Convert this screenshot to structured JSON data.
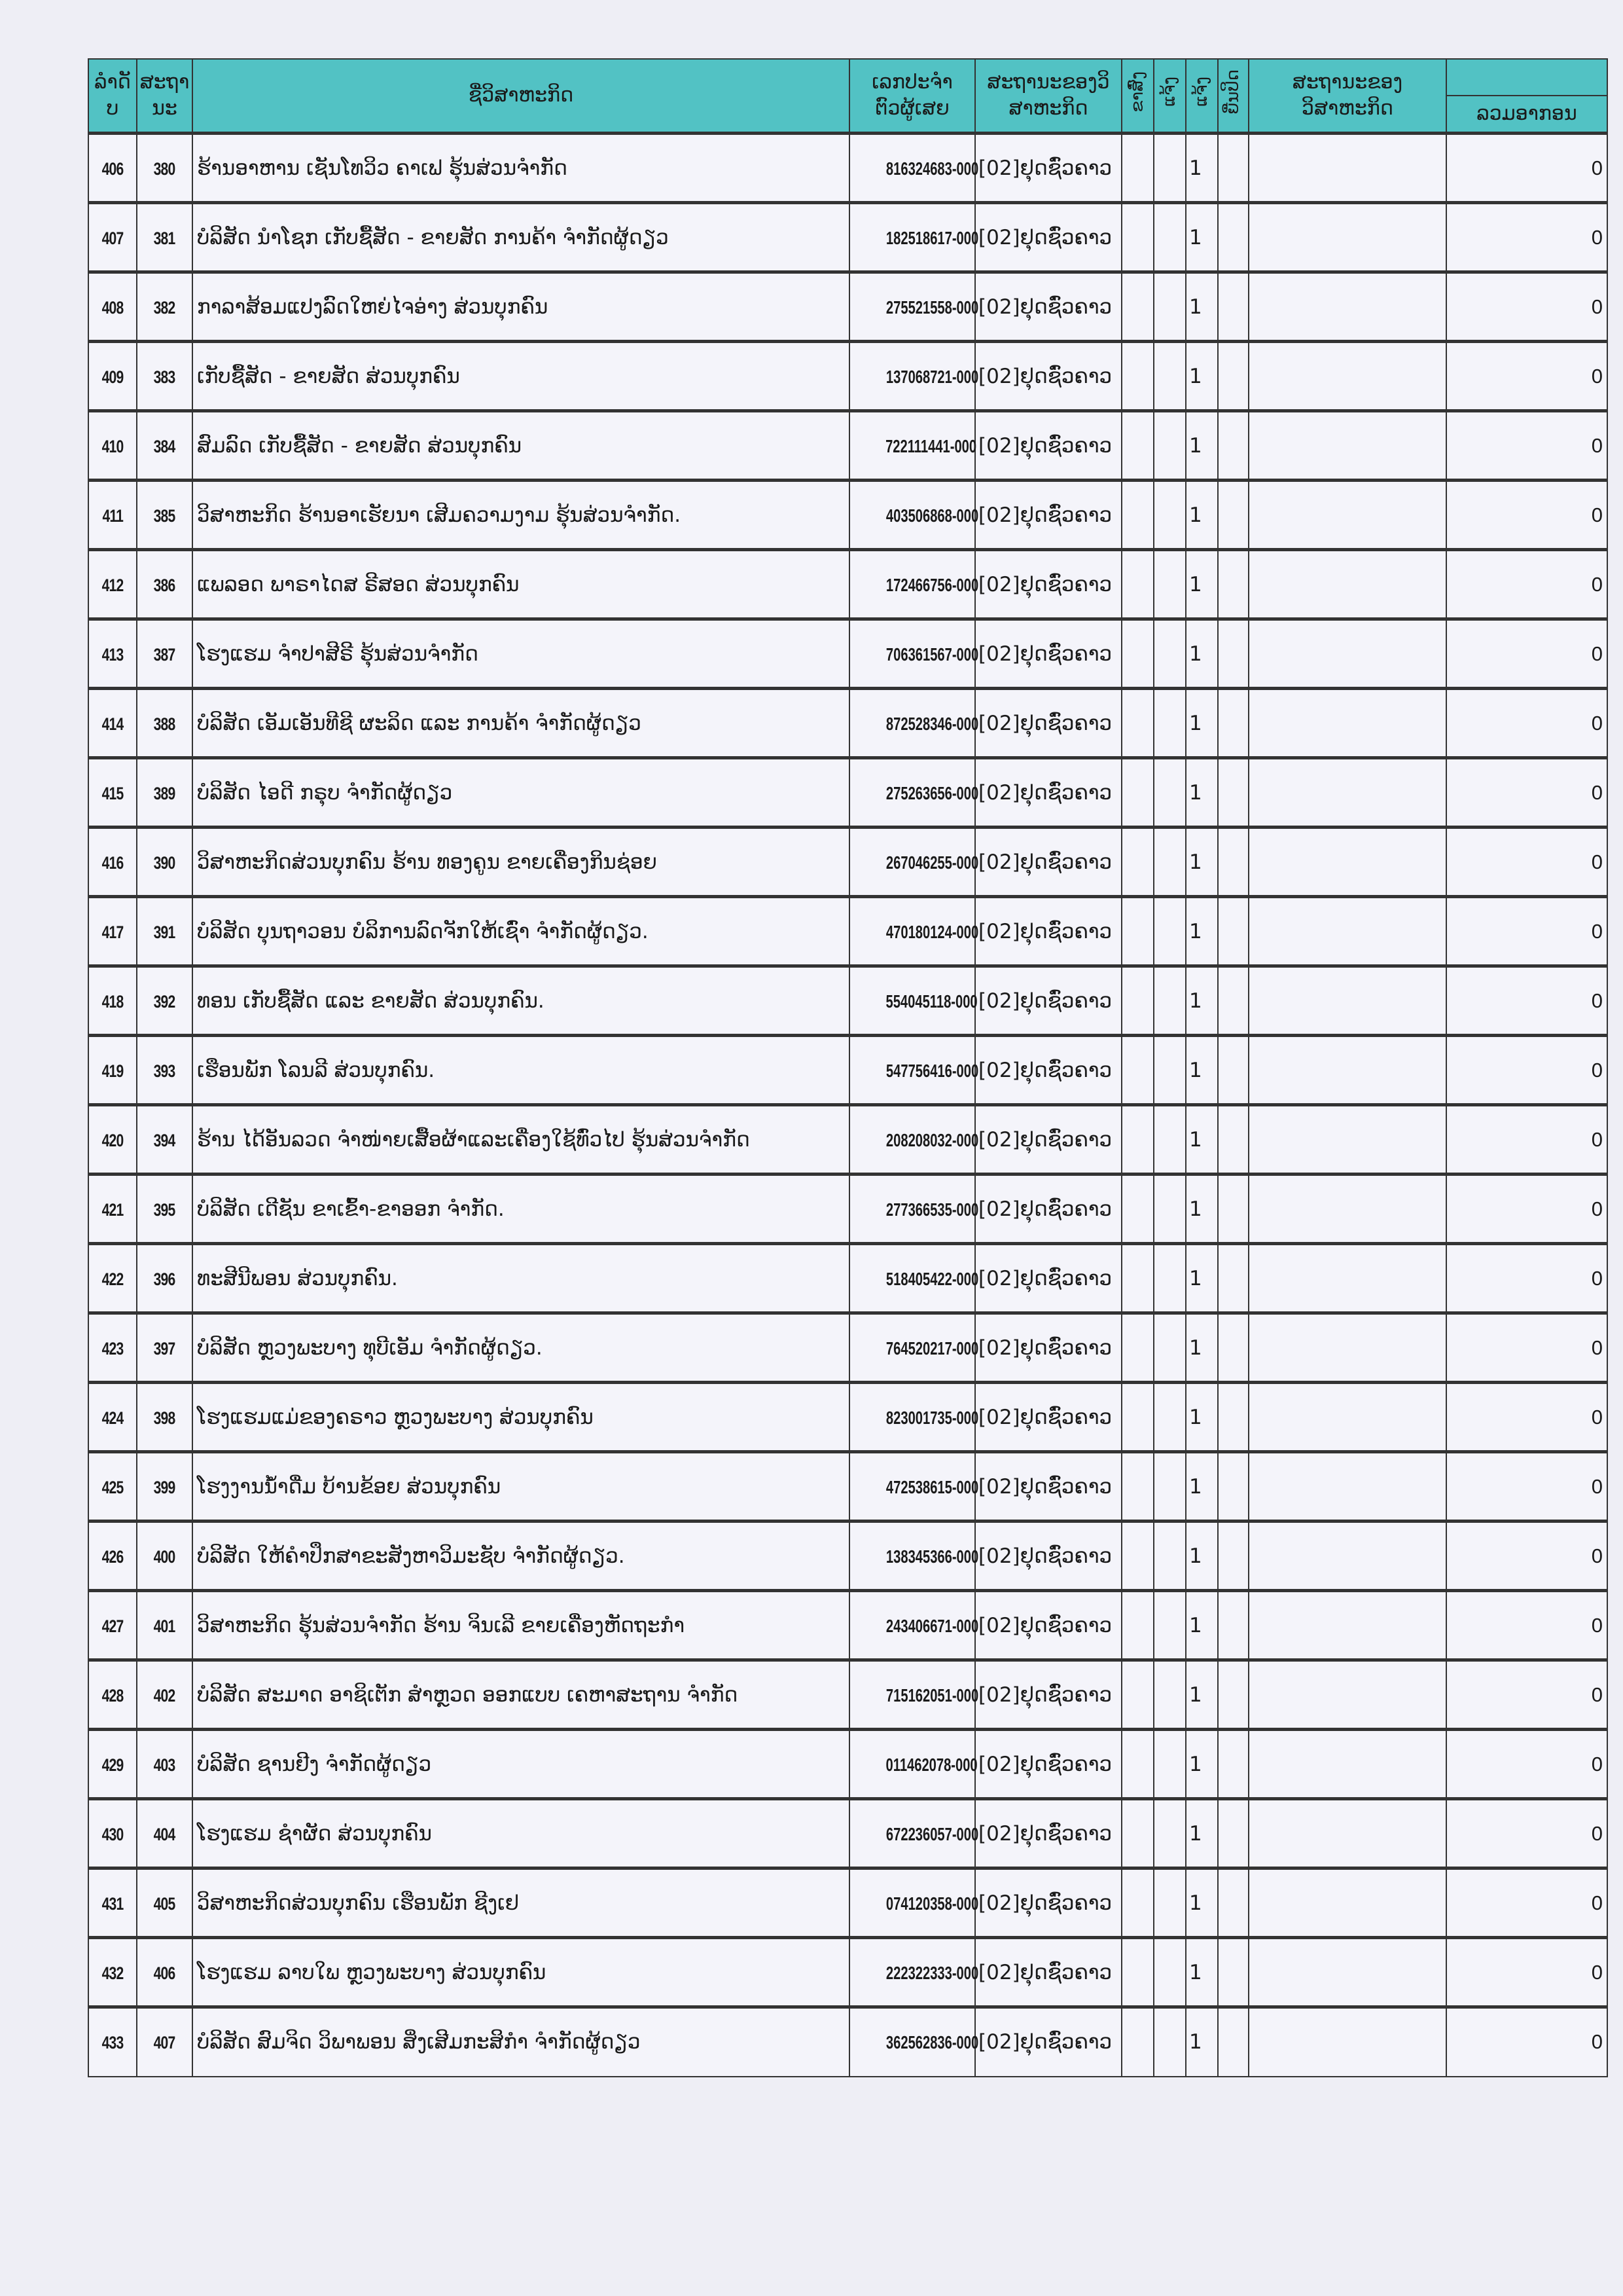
{
  "header": {
    "row_no": [
      "ລຳດັ",
      "ບ"
    ],
    "status_no": [
      "ສະຖາ",
      "ນະ"
    ],
    "enterprise_name": "ຊື່ວິສາຫະກິດ",
    "tin": [
      "ເລກປະຈຳ",
      "ຕົວຜູ້ເສຍ"
    ],
    "enterprise_status": [
      "ສະຖານະຂອງວິ",
      "ສາຫະກິດ"
    ],
    "flag_cols": [
      "ຂາສົ່ງ",
      "ແຈ້ງ",
      "ແຈ້ງ",
      "ຍື່ນປິດ"
    ],
    "enterprise_state": [
      "ສະຖານະຂອງ",
      "ວິສາຫະກິດ"
    ],
    "total_tax": "ລວມອາກອນ"
  },
  "colors": {
    "header_bg": "#52c2c4",
    "paper": "#eeeef5"
  },
  "rows": [
    {
      "no": "406",
      "seq": "380",
      "name": "ຮ້ານອາຫານ ເຊັນໂທວິວ ຄາເຟ ຮຸ້ນສ່ວນຈຳກັດ",
      "tin": "816324683-000",
      "status": "[02]ຢຸດຊົ່ວຄາວ",
      "flag": "1",
      "total": "0"
    },
    {
      "no": "407",
      "seq": "381",
      "name": "ບໍລິສັດ ນຳໂຊກ ເກັບຊື້ສັດ - ຂາຍສັດ ການຄ້າ ຈຳກັດຜູ້ດຽວ",
      "tin": "182518617-000",
      "status": "[02]ຢຸດຊົ່ວຄາວ",
      "flag": "1",
      "total": "0"
    },
    {
      "no": "408",
      "seq": "382",
      "name": "ກາລາສ້ອມແປງລົດໃຫຍ່ໄຈອ່າງ ສ່ວນບຸກຄົນ",
      "tin": "275521558-000",
      "status": "[02]ຢຸດຊົ່ວຄາວ",
      "flag": "1",
      "total": "0"
    },
    {
      "no": "409",
      "seq": "383",
      "name": "ເກັບຊື້ສັດ - ຂາຍສັດ ສ່ວນບຸກຄົນ",
      "tin": "137068721-000",
      "status": "[02]ຢຸດຊົ່ວຄາວ",
      "flag": "1",
      "total": "0"
    },
    {
      "no": "410",
      "seq": "384",
      "name": "ສົມລົດ ເກັບຊື້ສັດ - ຂາຍສັດ ສ່ວນບຸກຄົນ",
      "tin": "722111441-000",
      "status": "[02]ຢຸດຊົ່ວຄາວ",
      "flag": "1",
      "total": "0"
    },
    {
      "no": "411",
      "seq": "385",
      "name": "ວິສາຫະກິດ ຮ້ານອາເຮັຍນາ ເສີມຄວາມງາມ ຮຸ້ນສ່ວນຈຳກັດ.",
      "tin": "403506868-000",
      "status": "[02]ຢຸດຊົ່ວຄາວ",
      "flag": "1",
      "total": "0"
    },
    {
      "no": "412",
      "seq": "386",
      "name": "ແພລອດ ພາຣາໄດສ ຣີສອດ ສ່ວນບຸກຄົນ",
      "tin": "172466756-000",
      "status": "[02]ຢຸດຊົ່ວຄາວ",
      "flag": "1",
      "total": "0"
    },
    {
      "no": "413",
      "seq": "387",
      "name": "ໂຮງແຮມ ຈຳປາສີຣີ ຮຸ້ນສ່ວນຈຳກັດ",
      "tin": "706361567-000",
      "status": "[02]ຢຸດຊົ່ວຄາວ",
      "flag": "1",
      "total": "0"
    },
    {
      "no": "414",
      "seq": "388",
      "name": "ບໍລິສັດ ເອັມເອັນທີຊີ ຜະລິດ ແລະ ການຄ້າ ຈຳກັດຜູ້ດຽວ",
      "tin": "872528346-000",
      "status": "[02]ຢຸດຊົ່ວຄາວ",
      "flag": "1",
      "total": "0"
    },
    {
      "no": "415",
      "seq": "389",
      "name": "ບໍລິສັດ ໄອດີ ກຣຸບ ຈຳກັດຜູ້ດຽວ",
      "tin": "275263656-000",
      "status": "[02]ຢຸດຊົ່ວຄາວ",
      "flag": "1",
      "total": "0"
    },
    {
      "no": "416",
      "seq": "390",
      "name": "ວິສາຫະກິດສ່ວນບຸກຄົນ ຮ້ານ ທອງຄູນ ຂາຍເຄື່ອງກິນຊ່ອຍ",
      "tin": "267046255-000",
      "status": "[02]ຢຸດຊົ່ວຄາວ",
      "flag": "1",
      "total": "0"
    },
    {
      "no": "417",
      "seq": "391",
      "name": "ບໍລິສັດ ບຸນຖາວອນ ບໍລິການລົດຈັກໃຫ້ເຊົ່າ ຈຳກັດຜູ້ດຽວ.",
      "tin": "470180124-000",
      "status": "[02]ຢຸດຊົ່ວຄາວ",
      "flag": "1",
      "total": "0"
    },
    {
      "no": "418",
      "seq": "392",
      "name": "ທອນ ເກັບຊື້ສັດ ແລະ ຂາຍສັດ ສ່ວນບຸກຄົນ.",
      "tin": "554045118-000",
      "status": "[02]ຢຸດຊົ່ວຄາວ",
      "flag": "1",
      "total": "0"
    },
    {
      "no": "419",
      "seq": "393",
      "name": "ເຮືອນພັກ ໂລນລີ ສ່ວນບຸກຄົນ.",
      "tin": "547756416-000",
      "status": "[02]ຢຸດຊົ່ວຄາວ",
      "flag": "1",
      "total": "0"
    },
    {
      "no": "420",
      "seq": "394",
      "name": "ຮ້ານ ໄດ້ອັນລວດ ຈຳໜ່າຍເສື້ອຜ້າແລະເຄື່ອງໃຊ້ທົ່ວໄປ ຮຸ້ນສ່ວນຈຳກັດ",
      "tin": "208208032-000",
      "status": "[02]ຢຸດຊົ່ວຄາວ",
      "flag": "1",
      "total": "0"
    },
    {
      "no": "421",
      "seq": "395",
      "name": "ບໍລິສັດ ເດີຊັນ ຂາເຂົ້າ-ຂາອອກ ຈຳກັດ.",
      "tin": "277366535-000",
      "status": "[02]ຢຸດຊົ່ວຄາວ",
      "flag": "1",
      "total": "0"
    },
    {
      "no": "422",
      "seq": "396",
      "name": "ທະສີນີພອນ ສ່ວນບຸກຄົນ.",
      "tin": "518405422-000",
      "status": "[02]ຢຸດຊົ່ວຄາວ",
      "flag": "1",
      "total": "0"
    },
    {
      "no": "423",
      "seq": "397",
      "name": "ບໍລິສັດ ຫຼວງພະບາງ ທຸບີເອັມ ຈຳກັດຜູ້ດຽວ.",
      "tin": "764520217-000",
      "status": "[02]ຢຸດຊົ່ວຄາວ",
      "flag": "1",
      "total": "0"
    },
    {
      "no": "424",
      "seq": "398",
      "name": "ໂຮງແຮມແມ່ຂອງຄຣາວ ຫຼວງພະບາງ ສ່ວນບຸກຄົນ",
      "tin": "823001735-000",
      "status": "[02]ຢຸດຊົ່ວຄາວ",
      "flag": "1",
      "total": "0"
    },
    {
      "no": "425",
      "seq": "399",
      "name": "ໂຮງງານນ້ຳດື່ມ ບ້ານຂ້ອຍ ສ່ວນບຸກຄົນ",
      "tin": "472538615-000",
      "status": "[02]ຢຸດຊົ່ວຄາວ",
      "flag": "1",
      "total": "0"
    },
    {
      "no": "426",
      "seq": "400",
      "name": "ບໍລິສັດ ໃຫ້ຄຳປຶກສາຂະສັງຫາວິມະຊັບ ຈຳກັດຜູ້ດຽວ.",
      "tin": "138345366-000",
      "status": "[02]ຢຸດຊົ່ວຄາວ",
      "flag": "1",
      "total": "0"
    },
    {
      "no": "427",
      "seq": "401",
      "name": "ວິສາຫະກິດ ຮຸ້ນສ່ວນຈຳກັດ ຮ້ານ ຈິນເລີ ຂາຍເຄື່ອງຫັດຖະກຳ",
      "tin": "243406671-000",
      "status": "[02]ຢຸດຊົ່ວຄາວ",
      "flag": "1",
      "total": "0"
    },
    {
      "no": "428",
      "seq": "402",
      "name": "ບໍລິສັດ ສະມາດ ອາຊິເຕັກ ສຳຫຼວດ ອອກແບບ ເຄຫາສະຖານ ຈຳກັດ",
      "tin": "715162051-000",
      "status": "[02]ຢຸດຊົ່ວຄາວ",
      "flag": "1",
      "total": "0"
    },
    {
      "no": "429",
      "seq": "403",
      "name": "ບໍລິສັດ ຊານຢີງ ຈຳກັດຜູ້ດຽວ",
      "tin": "011462078-000",
      "status": "[02]ຢຸດຊົ່ວຄາວ",
      "flag": "1",
      "total": "0"
    },
    {
      "no": "430",
      "seq": "404",
      "name": "ໂຮງແຮມ ຊຳຜັດ ສ່ວນບຸກຄົນ",
      "tin": "672236057-000",
      "status": "[02]ຢຸດຊົ່ວຄາວ",
      "flag": "1",
      "total": "0"
    },
    {
      "no": "431",
      "seq": "405",
      "name": "ວິສາຫະກິດສ່ວນບຸກຄົນ ເຮືອນພັກ ຊີງເຢ",
      "tin": "074120358-000",
      "status": "[02]ຢຸດຊົ່ວຄາວ",
      "flag": "1",
      "total": "0"
    },
    {
      "no": "432",
      "seq": "406",
      "name": "ໂຮງແຮມ ລາບໃພ ຫຼວງພະບາງ ສ່ວນບຸກຄົນ",
      "tin": "222322333-000",
      "status": "[02]ຢຸດຊົ່ວຄາວ",
      "flag": "1",
      "total": "0"
    },
    {
      "no": "433",
      "seq": "407",
      "name": "ບໍລິສັດ ສົມຈິດ ວິພາພອນ ສິ່ງເສີມກະສິກຳ ຈຳກັດຜູ້ດຽວ",
      "tin": "362562836-000",
      "status": "[02]ຢຸດຊົ່ວຄາວ",
      "flag": "1",
      "total": "0"
    }
  ]
}
